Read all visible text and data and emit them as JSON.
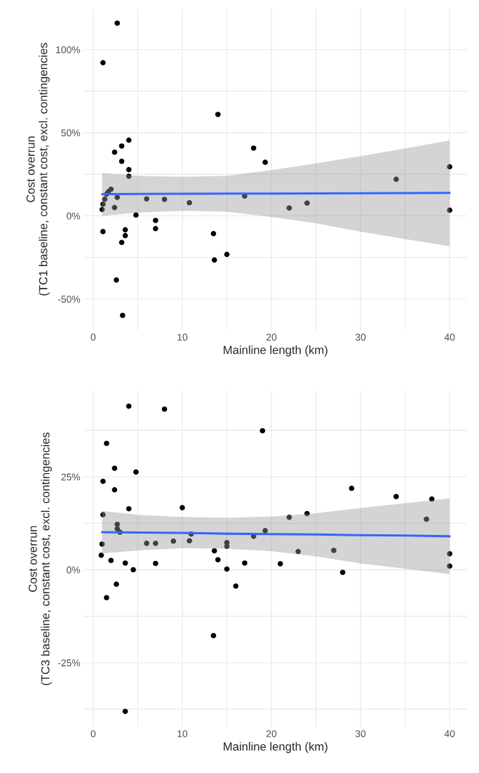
{
  "chart_data": [
    {
      "type": "scatter",
      "xlabel": "Mainline length (km)",
      "ylabel": "Cost overrun\n(TC1 baseline, constant cost, excl. contingencies",
      "xlim": [
        -1.05,
        41.95
      ],
      "ylim": [
        -68.7,
        124.7
      ],
      "xticks": [
        0,
        {
          "value": 5,
          "label": null
        },
        10,
        {
          "value": 15,
          "label": null
        },
        20,
        {
          "value": 25,
          "label": null
        },
        30,
        {
          "value": 35,
          "label": null
        },
        40
      ],
      "yticks": [
        {
          "value": -50,
          "label": "-50%"
        },
        {
          "value": -25,
          "label": null
        },
        {
          "value": 0,
          "label": "0%"
        },
        {
          "value": 25,
          "label": null
        },
        {
          "value": 50,
          "label": "50%"
        },
        {
          "value": 75,
          "label": null
        },
        {
          "value": 100,
          "label": "100%"
        }
      ],
      "grid": true,
      "series": [
        {
          "marker": "circle",
          "color": "#000000",
          "x": [
            2.7,
            1.1,
            2.4,
            3.2,
            4.0,
            3.2,
            4.0,
            4.0,
            2.0,
            1.7,
            1.5,
            1.3,
            1.1,
            1.0,
            2.7,
            2.4,
            4.8,
            6.0,
            8.0,
            10.8,
            7.0,
            7.0,
            1.1,
            3.6,
            3.6,
            3.2,
            2.6,
            3.3,
            14.0,
            18.0,
            19.3,
            17.0,
            22.0,
            24.0,
            34.0,
            40.0,
            40.0,
            13.5,
            13.6,
            15.0
          ],
          "values": [
            115.9,
            92.1,
            38.3,
            42.0,
            45.5,
            32.8,
            27.8,
            23.8,
            16.0,
            14.5,
            13.0,
            10.0,
            7.0,
            3.8,
            11.1,
            5.0,
            0.5,
            10.2,
            9.9,
            7.9,
            -2.8,
            -7.7,
            -9.5,
            -8.4,
            -11.9,
            -16.0,
            -38.6,
            -59.9,
            61.0,
            40.7,
            32.2,
            11.9,
            4.7,
            7.7,
            22.0,
            29.5,
            3.4,
            -10.7,
            -26.6,
            -23.2
          ]
        },
        {
          "type": "line",
          "color": "#3366ff",
          "line_style": "solid",
          "x": [
            1,
            5,
            10,
            15,
            20,
            25,
            30,
            35,
            40
          ],
          "values": [
            13.1,
            13.2,
            13.3,
            13.4,
            13.4,
            13.5,
            13.6,
            13.7,
            13.8
          ],
          "lower": [
            0.0,
            2.0,
            3.0,
            2.5,
            -0.7,
            -4.5,
            -9.5,
            -14.0,
            -18.3
          ],
          "upper": [
            25.7,
            24.0,
            23.5,
            24.0,
            27.5,
            31.5,
            35.9,
            40.5,
            45.4
          ]
        }
      ]
    },
    {
      "type": "scatter",
      "xlabel": "Mainline length (km)",
      "ylabel": "Cost overrun\n(TC3 baseline, constant cost, excl. contingencies",
      "xlim": [
        -1.05,
        41.95
      ],
      "ylim": [
        -42.2,
        48.05
      ],
      "xticks": [
        0,
        {
          "value": 5,
          "label": null
        },
        10,
        {
          "value": 15,
          "label": null
        },
        20,
        {
          "value": 25,
          "label": null
        },
        30,
        {
          "value": 35,
          "label": null
        },
        40
      ],
      "yticks": [
        {
          "value": -37.5,
          "label": null
        },
        {
          "value": -25,
          "label": "-25%"
        },
        {
          "value": -12.5,
          "label": null
        },
        {
          "value": 0,
          "label": "0%"
        },
        {
          "value": 12.5,
          "label": null
        },
        {
          "value": 25,
          "label": "25%"
        },
        {
          "value": 37.5,
          "label": null
        }
      ],
      "grid": true,
      "series": [
        {
          "marker": "circle",
          "color": "#000000",
          "x": [
            4.0,
            8.0,
            1.5,
            2.4,
            4.8,
            1.1,
            2.4,
            4.0,
            10.0,
            1.1,
            2.7,
            2.7,
            3.0,
            11.0,
            6.0,
            7.0,
            9.0,
            10.8,
            1.0,
            0.9,
            2.0,
            3.6,
            7.0,
            4.5,
            2.6,
            1.5,
            3.6,
            19.0,
            29.0,
            34.0,
            38.0,
            24.0,
            22.0,
            37.4,
            19.3,
            18.0,
            15.0,
            15.0,
            13.6,
            27.0,
            23.0,
            40.0,
            14.0,
            17.0,
            21.0,
            40.0,
            15.0,
            28.0,
            16.0,
            13.5
          ],
          "values": [
            44.0,
            43.2,
            34.0,
            27.3,
            26.3,
            23.8,
            21.5,
            16.4,
            16.7,
            14.8,
            12.2,
            11.0,
            10.1,
            9.6,
            7.1,
            7.1,
            7.7,
            7.8,
            6.9,
            3.9,
            2.5,
            1.8,
            1.7,
            0.0,
            -3.9,
            -7.5,
            -38.1,
            37.4,
            21.9,
            19.7,
            19.0,
            15.1,
            14.1,
            13.6,
            10.5,
            9.0,
            7.3,
            6.3,
            5.1,
            5.2,
            4.9,
            4.3,
            2.7,
            1.8,
            1.6,
            1.0,
            0.2,
            -0.7,
            -4.4,
            -17.7
          ]
        },
        {
          "type": "line",
          "color": "#3366ff",
          "line_style": "solid",
          "x": [
            1,
            5,
            10,
            15,
            20,
            25,
            30,
            35,
            40
          ],
          "values": [
            10.1,
            10.0,
            9.9,
            9.7,
            9.6,
            9.5,
            9.3,
            9.2,
            9.0
          ],
          "lower": [
            4.4,
            5.2,
            5.8,
            5.6,
            5.0,
            3.6,
            1.7,
            0.3,
            -1.2
          ],
          "upper": [
            15.8,
            14.8,
            14.2,
            14.0,
            14.3,
            15.2,
            16.6,
            17.9,
            19.2
          ]
        }
      ]
    }
  ]
}
